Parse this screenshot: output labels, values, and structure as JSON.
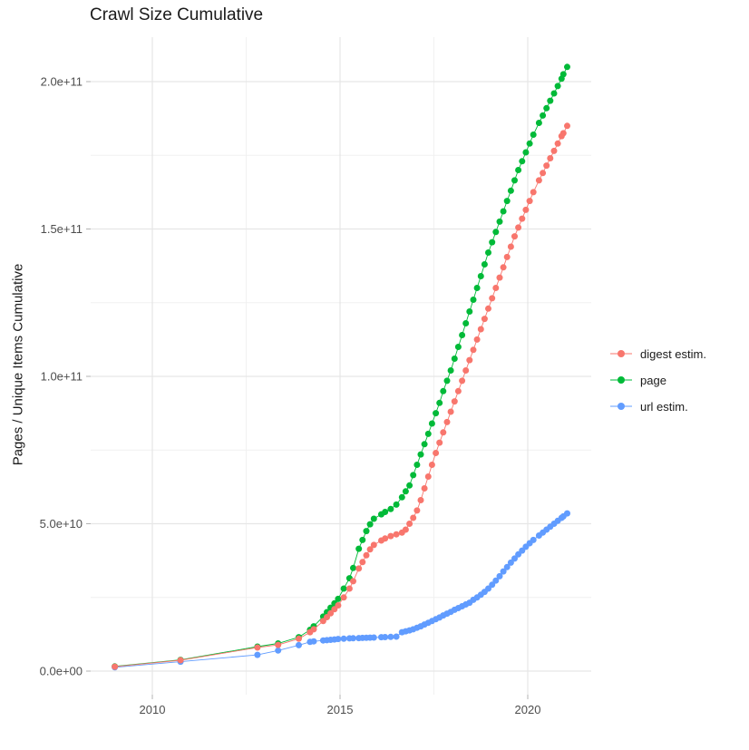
{
  "chart_data": {
    "type": "scatter",
    "title": "Crawl Size Cumulative",
    "xlabel": "",
    "ylabel": "Pages / Unique Items Cumulative",
    "xlim": [
      2008.4,
      2021.7
    ],
    "ylim": [
      0,
      215000000000.0
    ],
    "grid": "on",
    "legend_position": "right",
    "values_unit": "1e9 (billions of items)",
    "x_ticks": [
      {
        "label": "2010",
        "year": 2010
      },
      {
        "label": "2015",
        "year": 2015
      },
      {
        "label": "2020",
        "year": 2020
      }
    ],
    "x_minor": [
      2012.5,
      2017.5
    ],
    "y_ticks": [
      {
        "label": "0.0e+00",
        "value_e9": 0
      },
      {
        "label": "5.0e+10",
        "value_e9": 50
      },
      {
        "label": "1.0e+11",
        "value_e9": 100
      },
      {
        "label": "1.5e+11",
        "value_e9": 150
      },
      {
        "label": "2.0e+11",
        "value_e9": 200
      }
    ],
    "y_minor": [
      25,
      75,
      125,
      175
    ],
    "colors": {
      "digest": "#F8766D",
      "page": "#00BA38",
      "url": "#619CFF",
      "grid_major": "#e6e6e6",
      "grid_minor": "#f0f0f0",
      "tick": "#b3b3b3",
      "axis_text": "#4d4d4d",
      "title_text": "#1a1a1a"
    },
    "x_years": [
      2009.0,
      2010.75,
      2012.8,
      2013.35,
      2013.9,
      2014.2,
      2014.3,
      2014.55,
      2014.65,
      2014.75,
      2014.85,
      2014.95,
      2015.1,
      2015.25,
      2015.35,
      2015.5,
      2015.6,
      2015.7,
      2015.8,
      2015.9,
      2016.1,
      2016.2,
      2016.35,
      2016.5,
      2016.65,
      2016.75,
      2016.85,
      2016.95,
      2017.05,
      2017.15,
      2017.25,
      2017.35,
      2017.45,
      2017.55,
      2017.65,
      2017.75,
      2017.85,
      2017.95,
      2018.05,
      2018.15,
      2018.25,
      2018.35,
      2018.45,
      2018.55,
      2018.65,
      2018.75,
      2018.85,
      2018.95,
      2019.05,
      2019.15,
      2019.25,
      2019.35,
      2019.45,
      2019.55,
      2019.65,
      2019.75,
      2019.85,
      2019.95,
      2020.05,
      2020.15,
      2020.3,
      2020.4,
      2020.5,
      2020.6,
      2020.7,
      2020.8,
      2020.9,
      2020.95,
      2021.05
    ],
    "series": [
      {
        "name": "digest estim.",
        "color": "#F8766D",
        "values_e9": [
          1.5,
          3.7,
          8.0,
          8.9,
          11.0,
          13.2,
          14.2,
          17.0,
          18.3,
          19.6,
          21.0,
          22.3,
          25.0,
          28.0,
          30.5,
          34.8,
          37.0,
          39.3,
          41.3,
          42.8,
          44.3,
          45.0,
          45.8,
          46.4,
          47.0,
          48.0,
          50.0,
          52.0,
          54.5,
          58.0,
          62.0,
          66.0,
          70.0,
          74.0,
          77.5,
          81.0,
          84.5,
          88.0,
          91.5,
          95.0,
          98.5,
          102,
          105.5,
          109,
          112.5,
          116,
          119.5,
          123,
          126.5,
          130,
          133.5,
          137,
          140.5,
          144,
          147.5,
          150.5,
          153.5,
          156.5,
          159.5,
          162.5,
          166.5,
          169,
          171.5,
          174,
          176.5,
          179,
          181.5,
          182.5,
          185
        ]
      },
      {
        "name": "page",
        "color": "#00BA38",
        "values_e9": [
          1.6,
          3.8,
          8.3,
          9.4,
          11.5,
          14.0,
          15.2,
          18.5,
          20.0,
          21.5,
          23.0,
          24.5,
          28.0,
          31.5,
          35.0,
          41.5,
          44.5,
          47.5,
          49.8,
          51.7,
          53.2,
          54.0,
          55.0,
          56.5,
          59.0,
          61.0,
          63.0,
          66.5,
          70.0,
          73.5,
          77.0,
          80.5,
          84.0,
          87.5,
          91.0,
          95.0,
          98.5,
          102.0,
          106,
          110,
          114,
          118,
          122,
          126,
          130,
          134,
          138,
          142,
          145.5,
          149,
          152.5,
          156,
          159.5,
          163,
          166.5,
          170,
          173,
          176,
          179,
          182,
          186,
          188.5,
          191,
          193.5,
          196,
          198.5,
          201,
          202.5,
          205
        ]
      },
      {
        "name": "url estim.",
        "color": "#619CFF",
        "values_e9": [
          1.3,
          3.2,
          5.5,
          7.0,
          8.8,
          9.9,
          10.1,
          10.4,
          10.5,
          10.6,
          10.75,
          10.9,
          11.0,
          11.1,
          11.15,
          11.2,
          11.25,
          11.3,
          11.35,
          11.4,
          11.5,
          11.55,
          11.6,
          11.7,
          13.2,
          13.5,
          13.8,
          14.2,
          14.7,
          15.2,
          15.8,
          16.4,
          17.0,
          17.6,
          18.2,
          18.9,
          19.5,
          20.1,
          20.8,
          21.4,
          22.0,
          22.6,
          23.2,
          24.2,
          25.0,
          25.9,
          26.9,
          28.0,
          29.3,
          30.7,
          32.2,
          33.8,
          35.3,
          36.8,
          38.2,
          39.6,
          40.9,
          42.2,
          43.4,
          44.5,
          46.0,
          47.0,
          48.0,
          49.0,
          50.0,
          51.0,
          52.0,
          52.5,
          53.5
        ]
      }
    ]
  }
}
